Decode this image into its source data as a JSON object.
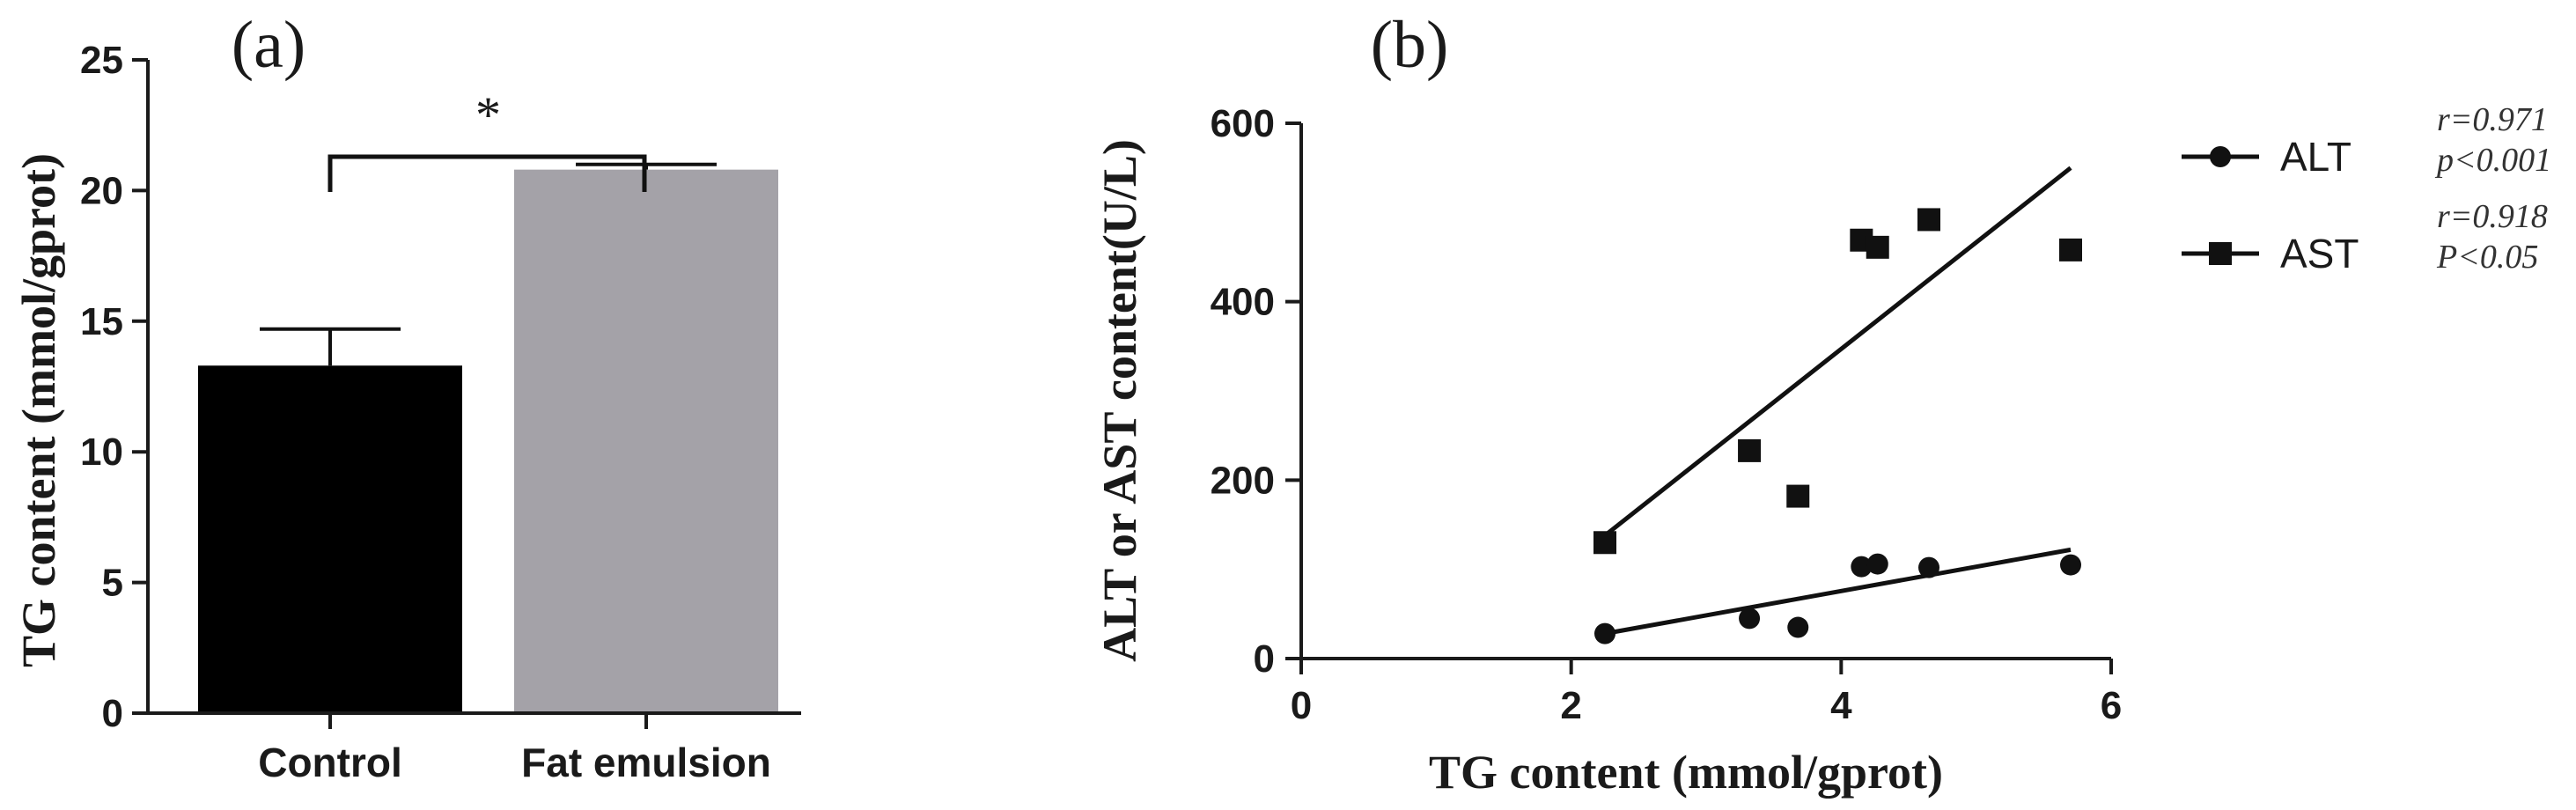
{
  "colors": {
    "control_bar": "#000000",
    "fat_bar": "#a4a2a8",
    "ink": "#111111"
  },
  "chart_data": [
    {
      "panel": "(a)",
      "type": "bar",
      "categories": [
        "Control",
        "Fat emulsion"
      ],
      "values": [
        13.3,
        20.8
      ],
      "errors": [
        1.4,
        0.2
      ],
      "ylabel": "TG content (mmol/gprot)",
      "ylim": [
        0,
        25
      ],
      "yticks": [
        "0",
        "5",
        "10",
        "15",
        "20",
        "25"
      ],
      "significance": "*",
      "grid": false
    },
    {
      "panel": "(b)",
      "type": "scatter",
      "xlabel": "TG content (mmol/gprot)",
      "ylabel": "ALT or AST content(U/L)",
      "xlim": [
        0,
        6
      ],
      "ylim": [
        0,
        600
      ],
      "xticks": [
        "0",
        "2",
        "4",
        "6"
      ],
      "yticks": [
        "0",
        "200",
        "400",
        "600"
      ],
      "legend_position": "right",
      "grid": false,
      "series": [
        {
          "name": "ALT",
          "marker": "circle",
          "x": [
            2.25,
            3.32,
            3.68,
            4.15,
            4.27,
            4.65,
            5.7
          ],
          "y": [
            28,
            45,
            35,
            103,
            106,
            102,
            105
          ],
          "fit": {
            "x0": 2.25,
            "y0": 28,
            "x1": 5.7,
            "y1": 122
          },
          "r": "r=0.971",
          "p": "p<0.001"
        },
        {
          "name": "AST",
          "marker": "square",
          "x": [
            2.25,
            3.32,
            3.68,
            4.15,
            4.27,
            4.65,
            5.7
          ],
          "y": [
            130,
            233,
            182,
            469,
            461,
            492,
            458
          ],
          "fit": {
            "x0": 2.25,
            "y0": 138,
            "x1": 5.7,
            "y1": 550
          },
          "r": "r=0.918",
          "p": "P<0.05"
        }
      ]
    }
  ]
}
